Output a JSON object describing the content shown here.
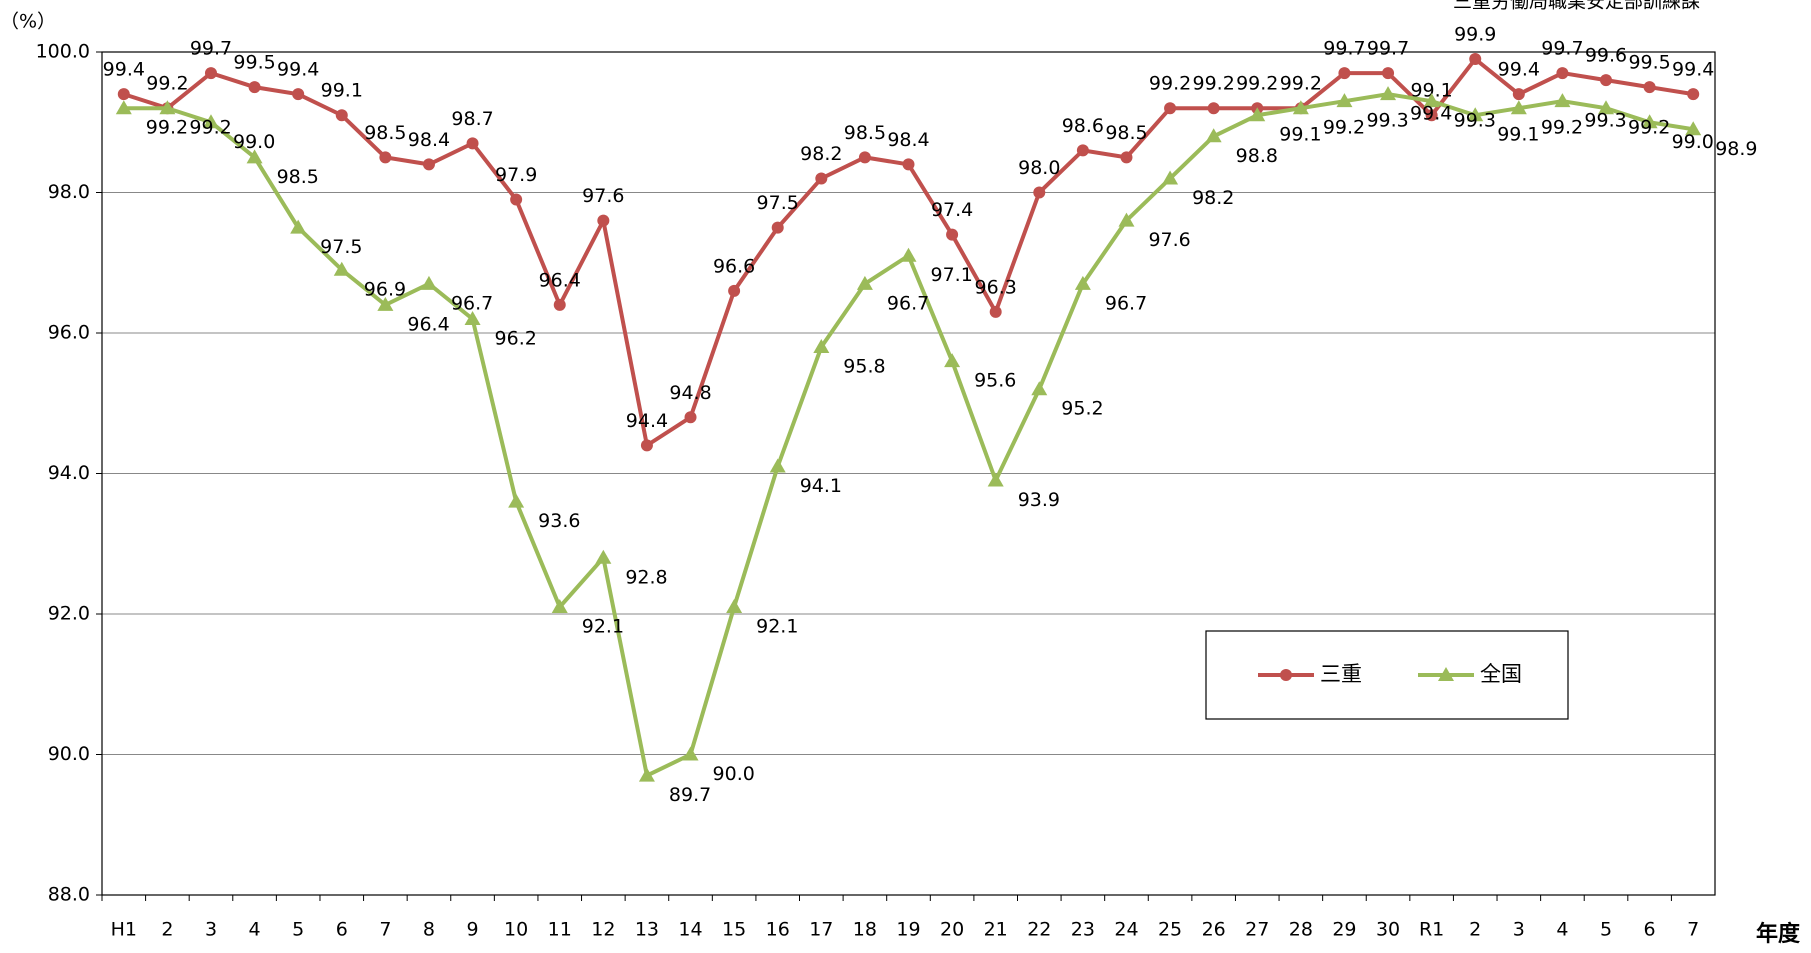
{
  "chart_data": {
    "type": "line",
    "source": "三重労働局職業安定部訓練課",
    "y_unit": "（%）",
    "x_label": "年度",
    "categories": [
      "H1",
      "2",
      "3",
      "4",
      "5",
      "6",
      "7",
      "8",
      "9",
      "10",
      "11",
      "12",
      "13",
      "14",
      "15",
      "16",
      "17",
      "18",
      "19",
      "20",
      "21",
      "22",
      "23",
      "24",
      "25",
      "26",
      "27",
      "28",
      "29",
      "30",
      "R1",
      "2",
      "3",
      "4",
      "5",
      "6",
      "7"
    ],
    "series": [
      {
        "name": "三重",
        "color": "#c0504d",
        "marker": "circle",
        "values": [
          99.4,
          99.2,
          99.7,
          99.5,
          99.4,
          99.1,
          98.5,
          98.4,
          98.7,
          97.9,
          96.4,
          97.6,
          94.4,
          94.8,
          96.6,
          97.5,
          98.2,
          98.5,
          98.4,
          97.4,
          96.3,
          98.0,
          98.6,
          98.5,
          99.2,
          99.2,
          99.2,
          99.2,
          99.7,
          99.7,
          99.1,
          99.9,
          99.4,
          99.7,
          99.6,
          99.5,
          99.4
        ],
        "value_labels": [
          "99.4",
          "99.2",
          "99.7",
          "99.5",
          "99.4",
          "99.1",
          "98.5",
          "98.4",
          "98.7",
          "97.9",
          "96.4",
          "97.6",
          "94.4",
          "94.8",
          "96.6",
          "97.5",
          "98.2",
          "98.5",
          "98.4",
          "97.4",
          "96.3",
          "98.0",
          "98.6",
          "98.5",
          "99.2",
          "99.2",
          "99.2",
          "99.2",
          "99.7",
          "99.7",
          "99.1",
          "99.9",
          "99.4",
          "99.7",
          "99.6",
          "99.5",
          "99.4"
        ]
      },
      {
        "name": "全国",
        "color": "#9bbb59",
        "marker": "triangle",
        "values": [
          99.2,
          99.2,
          99.0,
          98.5,
          97.5,
          96.9,
          96.4,
          96.7,
          96.2,
          93.6,
          92.1,
          92.8,
          89.7,
          90.0,
          92.1,
          94.1,
          95.8,
          96.7,
          97.1,
          95.6,
          93.9,
          95.2,
          96.7,
          97.6,
          98.2,
          98.8,
          99.1,
          99.2,
          99.3,
          99.4,
          99.3,
          99.1,
          99.2,
          99.3,
          99.2,
          99.0,
          98.9
        ],
        "value_labels": [
          "99.2",
          "99.2",
          "99.0",
          "98.5",
          "97.5",
          "96.9",
          "96.4",
          "96.7",
          "96.2",
          "93.6",
          "92.1",
          "92.8",
          "89.7",
          "90.0",
          "92.1",
          "94.1",
          "95.8",
          "96.7",
          "97.1",
          "95.6",
          "93.9",
          "95.2",
          "96.7",
          "97.6",
          "98.2",
          "98.8",
          "99.1",
          "99.2",
          "99.3",
          "99.4",
          "99.3",
          "99.1",
          "99.2",
          "99.3",
          "99.2",
          "99.0",
          "98.9"
        ]
      }
    ],
    "ylim": [
      88,
      100
    ],
    "yticks": [
      {
        "value": 88,
        "label": "88.0"
      },
      {
        "value": 90,
        "label": "90.0"
      },
      {
        "value": 92,
        "label": "92.0"
      },
      {
        "value": 94,
        "label": "94.0"
      },
      {
        "value": 96,
        "label": "96.0"
      },
      {
        "value": 98,
        "label": "98.0"
      },
      {
        "value": 100,
        "label": "100.0"
      }
    ],
    "grid": true,
    "legend": "lower-right"
  }
}
